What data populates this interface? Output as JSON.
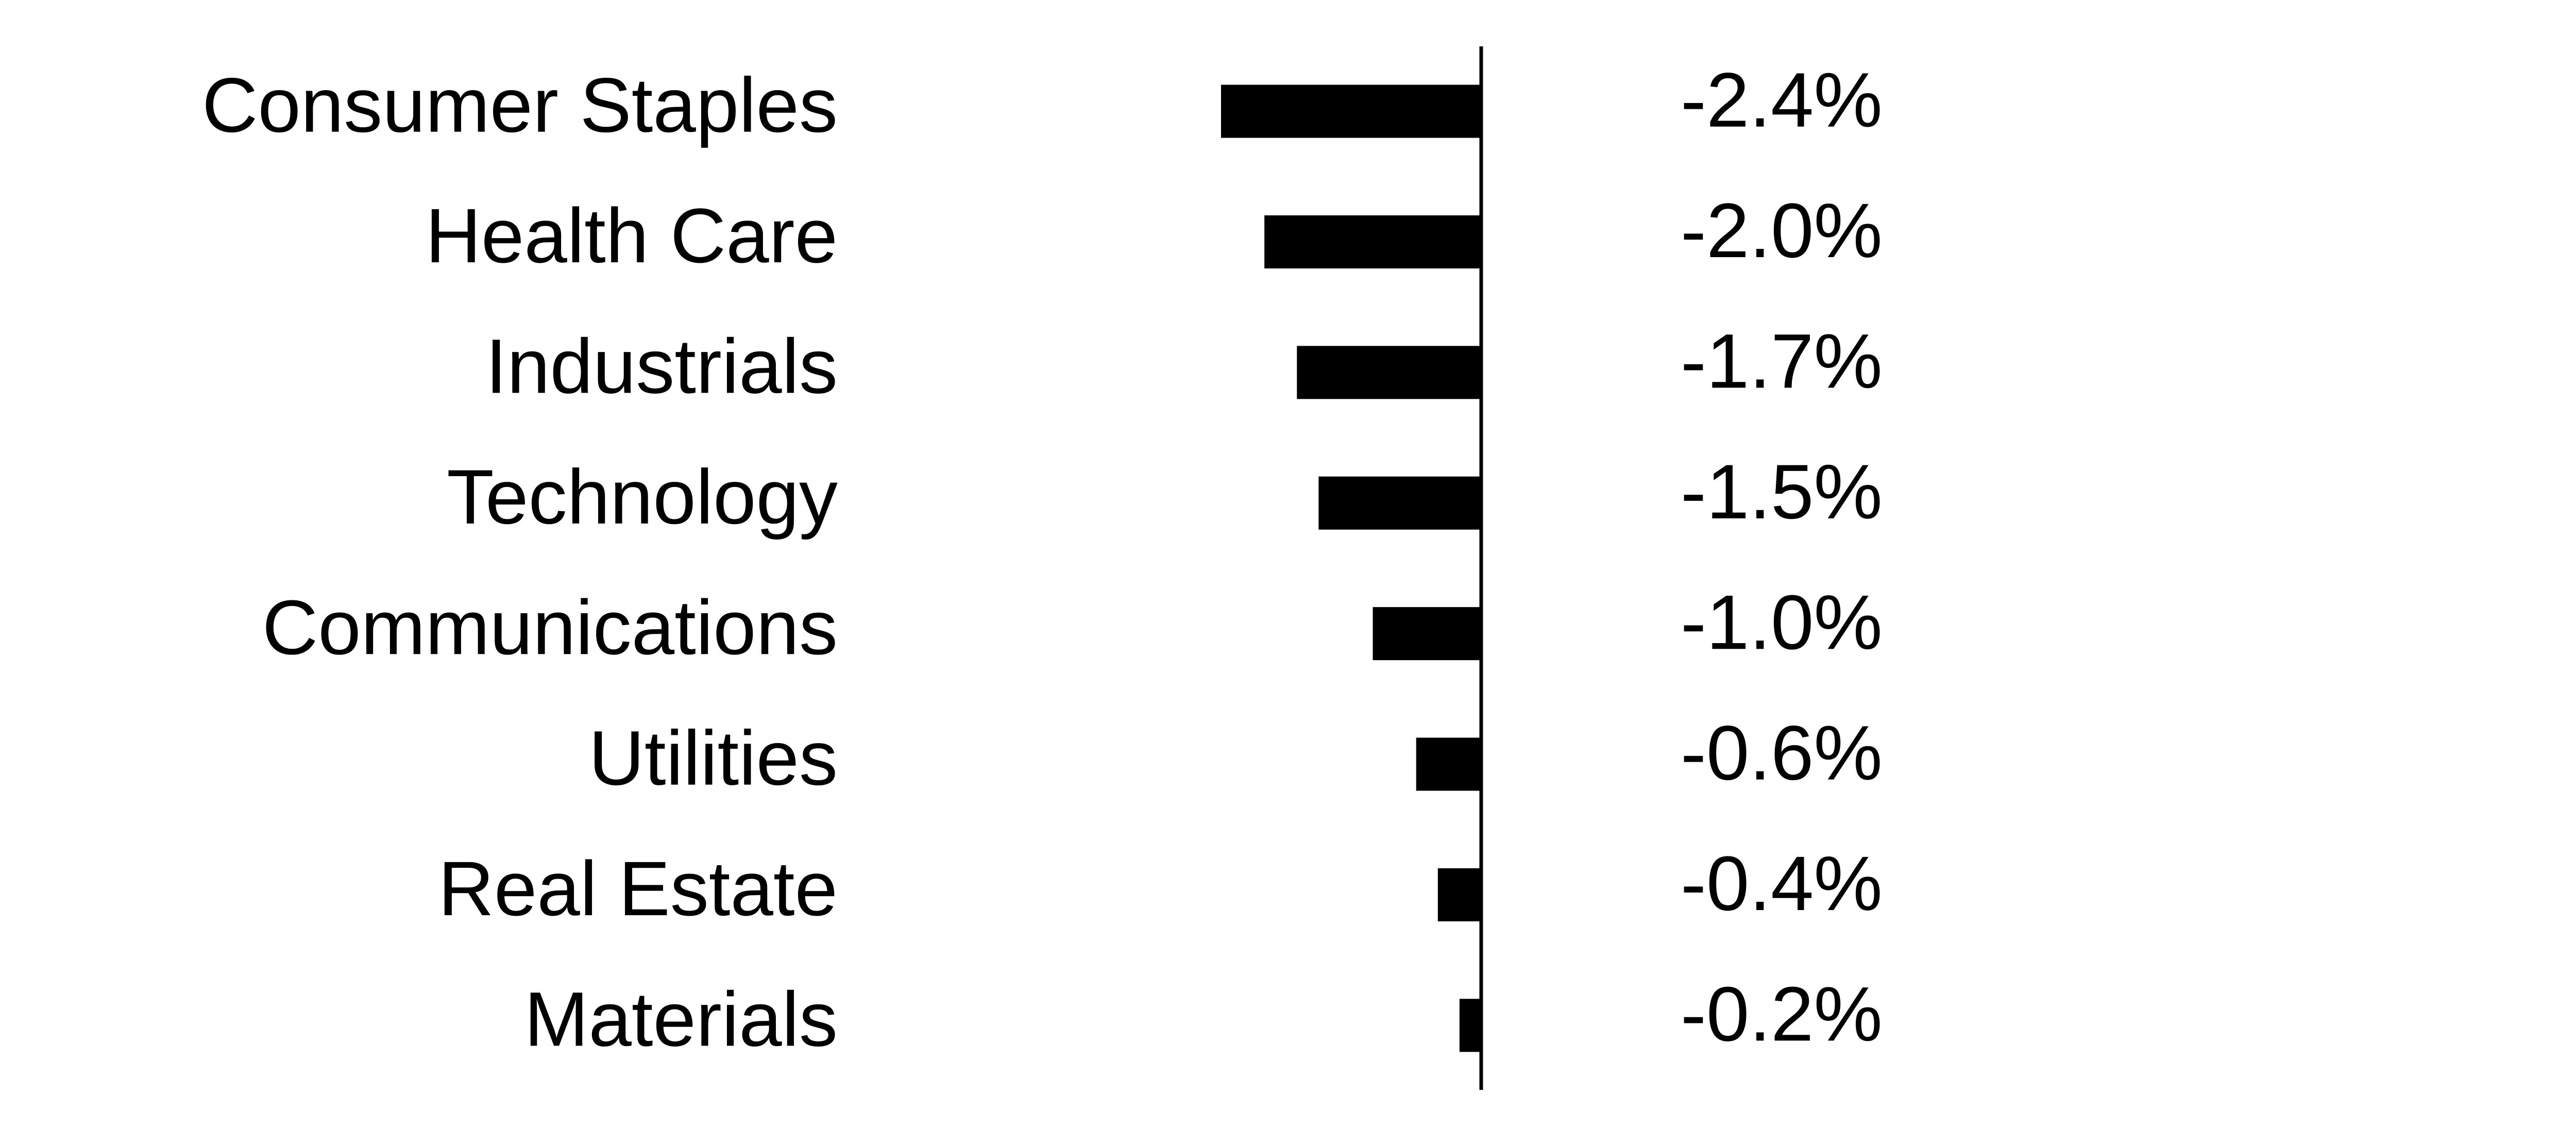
{
  "chart_data": {
    "type": "bar",
    "orientation": "horizontal",
    "color": "#000000",
    "categories": [
      "Consumer Staples",
      "Health Care",
      "Industrials",
      "Technology",
      "Communications",
      "Utilities",
      "Real Estate",
      "Materials"
    ],
    "values": [
      -2.4,
      -2.0,
      -1.7,
      -1.5,
      -1.0,
      -0.6,
      -0.4,
      -0.2
    ],
    "value_labels": [
      "-2.4%",
      "-2.0%",
      "-1.7%",
      "-1.5%",
      "-1.0%",
      "-0.6%",
      "-0.4%",
      "-0.2%"
    ],
    "xlim": [
      -2.4,
      0
    ]
  }
}
